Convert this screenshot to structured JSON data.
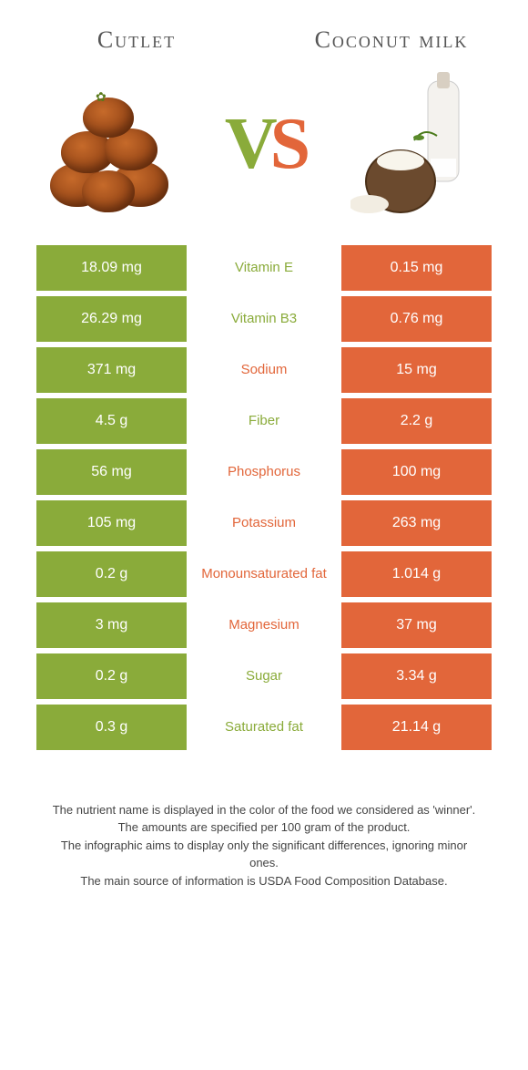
{
  "header": {
    "left": "Cutlet",
    "right": "Coconut milk"
  },
  "vs": {
    "v": "V",
    "s": "S"
  },
  "colors": {
    "green": "#8aab3a",
    "orange": "#e2663a"
  },
  "rows": [
    {
      "left": "18.09 mg",
      "label": "Vitamin E",
      "winner": "green",
      "right": "0.15 mg"
    },
    {
      "left": "26.29 mg",
      "label": "Vitamin B3",
      "winner": "green",
      "right": "0.76 mg"
    },
    {
      "left": "371 mg",
      "label": "Sodium",
      "winner": "orange",
      "right": "15 mg"
    },
    {
      "left": "4.5 g",
      "label": "Fiber",
      "winner": "green",
      "right": "2.2 g"
    },
    {
      "left": "56 mg",
      "label": "Phosphorus",
      "winner": "orange",
      "right": "100 mg"
    },
    {
      "left": "105 mg",
      "label": "Potassium",
      "winner": "orange",
      "right": "263 mg"
    },
    {
      "left": "0.2 g",
      "label": "Monounsaturated fat",
      "winner": "orange",
      "right": "1.014 g"
    },
    {
      "left": "3 mg",
      "label": "Magnesium",
      "winner": "orange",
      "right": "37 mg"
    },
    {
      "left": "0.2 g",
      "label": "Sugar",
      "winner": "green",
      "right": "3.34 g"
    },
    {
      "left": "0.3 g",
      "label": "Saturated fat",
      "winner": "green",
      "right": "21.14 g"
    }
  ],
  "footer": {
    "l1": "The nutrient name is displayed in the color of the food we considered as 'winner'.",
    "l2": "The amounts are specified per 100 gram of the product.",
    "l3": "The infographic aims to display only the significant differences, ignoring minor ones.",
    "l4": "The main source of information is USDA Food Composition Database."
  }
}
